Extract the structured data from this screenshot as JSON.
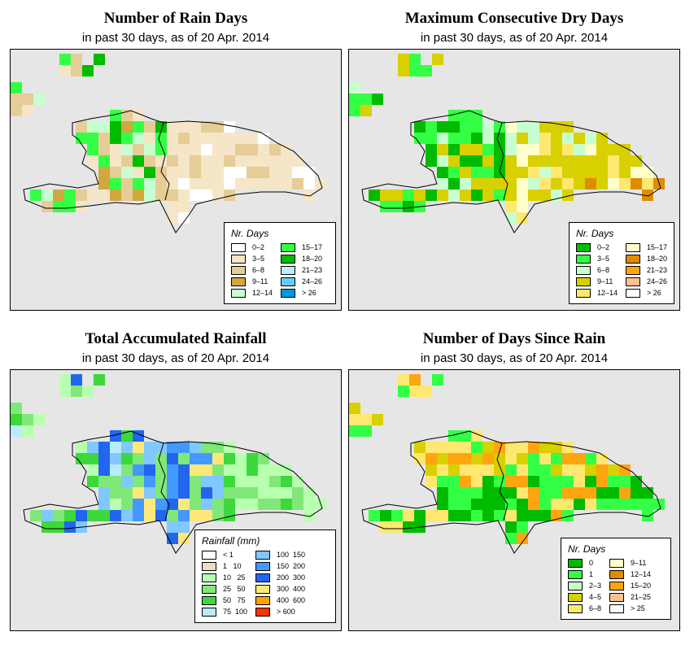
{
  "chart_data": [
    {
      "type": "heatmap",
      "title": "Number of Rain Days",
      "subtitle": "in past 30 days, as of  20 Apr. 2014",
      "legend": {
        "title": "Nr. Days",
        "items": [
          {
            "label": "0–2",
            "color": "#ffffff"
          },
          {
            "label": "3–5",
            "color": "#f5e6c8"
          },
          {
            "label": "6–8",
            "color": "#e6cc96"
          },
          {
            "label": "9–11",
            "color": "#d0a840"
          },
          {
            "label": "12–14",
            "color": "#c8ffd0"
          },
          {
            "label": "15–17",
            "color": "#33ff44"
          },
          {
            "label": "18–20",
            "color": "#00bb00"
          },
          {
            "label": "21–23",
            "color": "#c0ecff"
          },
          {
            "label": "24–26",
            "color": "#66ccff"
          },
          {
            "label": "> 26",
            "color": "#0099dd"
          }
        ]
      }
    },
    {
      "type": "heatmap",
      "title": "Maximum Consecutive Dry Days",
      "subtitle": "in past 30 days, as of  20 Apr. 2014",
      "legend": {
        "title": "Nr. Days",
        "items": [
          {
            "label": "0–2",
            "color": "#00bb00"
          },
          {
            "label": "3–5",
            "color": "#33ff44"
          },
          {
            "label": "6–8",
            "color": "#c8ffd0"
          },
          {
            "label": "9–11",
            "color": "#d8d000"
          },
          {
            "label": "12–14",
            "color": "#ffe870"
          },
          {
            "label": "15–17",
            "color": "#ffffcc"
          },
          {
            "label": "18–20",
            "color": "#e08c00"
          },
          {
            "label": "21–23",
            "color": "#ffa510"
          },
          {
            "label": "24–26",
            "color": "#ffc090"
          },
          {
            "label": "> 26",
            "color": "#ffffff"
          }
        ]
      }
    },
    {
      "type": "heatmap",
      "title": "Total Accumulated Rainfall",
      "subtitle": "in past 30 days, as of  20 Apr. 2014",
      "legend": {
        "title": "Rainfall (mm)",
        "items": [
          {
            "label": "< 1",
            "color": "#ffffff"
          },
          {
            "label": "1   10",
            "color": "#f0dcc0"
          },
          {
            "label": "10   25",
            "color": "#b8ffb0"
          },
          {
            "label": "25   50",
            "color": "#80e878"
          },
          {
            "label": "50   75",
            "color": "#3cd83c"
          },
          {
            "label": "75  100",
            "color": "#b8ecf8"
          },
          {
            "label": "100  150",
            "color": "#80c8ff"
          },
          {
            "label": "150  200",
            "color": "#4499ff"
          },
          {
            "label": "200  300",
            "color": "#2266ee"
          },
          {
            "label": "300  400",
            "color": "#ffe87a"
          },
          {
            "label": "400  600",
            "color": "#ffa500"
          },
          {
            "label": "> 600",
            "color": "#ff3300"
          }
        ]
      }
    },
    {
      "type": "heatmap",
      "title": "Number of Days Since Rain",
      "subtitle": "in past 30 days, as of  20 Apr. 2014",
      "legend": {
        "title": "Nr. Days",
        "items": [
          {
            "label": "0",
            "color": "#00bb00"
          },
          {
            "label": "1",
            "color": "#33ff44"
          },
          {
            "label": "2–3",
            "color": "#c8ffd0"
          },
          {
            "label": "4–5",
            "color": "#d8d000"
          },
          {
            "label": "6–8",
            "color": "#ffe870"
          },
          {
            "label": "9–11",
            "color": "#ffffcc"
          },
          {
            "label": "12–14",
            "color": "#e08c00"
          },
          {
            "label": "15–20",
            "color": "#ffa510"
          },
          {
            "label": "21–25",
            "color": "#ffc090"
          },
          {
            "label": "> 25",
            "color": "#ffffff"
          }
        ]
      }
    }
  ]
}
